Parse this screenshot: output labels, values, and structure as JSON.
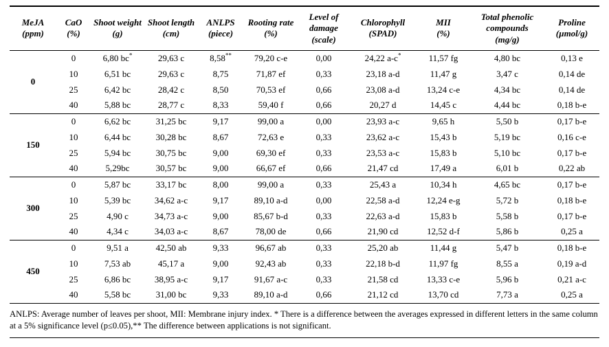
{
  "table": {
    "columns": [
      {
        "name": "MeJA",
        "unit": "(ppm)"
      },
      {
        "name": "CaO",
        "unit": "(%)"
      },
      {
        "name": "Shoot weight",
        "unit": "(g)"
      },
      {
        "name": "Shoot length",
        "unit": "(cm)"
      },
      {
        "name": "ANLPS",
        "unit": "(piece)"
      },
      {
        "name": "Rooting rate",
        "unit": "(%)"
      },
      {
        "name": "Level of damage",
        "unit": "(scale)"
      },
      {
        "name": "Chlorophyll",
        "unit": "(SPAD)"
      },
      {
        "name": "MII",
        "unit": "(%)"
      },
      {
        "name": "Total phenolic compounds",
        "unit": "(mg/g)"
      },
      {
        "name": "Proline",
        "unit": "(µmol/g)"
      }
    ],
    "groups": [
      {
        "meja": "0",
        "rows": [
          {
            "cao": "0",
            "cells": [
              "6,80 bc^*",
              "29,63 c",
              "8,58^**",
              "79,20 c-e",
              "0,00",
              "24,22 a-c^*",
              "11,57 fg",
              "4,80 bc",
              "0,13 e"
            ]
          },
          {
            "cao": "10",
            "cells": [
              "6,51 bc",
              "29,63 c",
              "8,75",
              "71,87 ef",
              "0,33",
              "23,18 a-d",
              "11,47 g",
              "3,47 c",
              "0,14 de"
            ]
          },
          {
            "cao": "25",
            "cells": [
              "6,42 bc",
              "28,42 c",
              "8,50",
              "70,53 ef",
              "0,66",
              "23,08 a-d",
              "13,24 c-e",
              "4,34 bc",
              "0,14 de"
            ]
          },
          {
            "cao": "40",
            "cells": [
              "5,88 bc",
              "28,77 c",
              "8,33",
              "59,40 f",
              "0,66",
              "20,27 d",
              "14,45 c",
              "4,44 bc",
              "0,18 b-e"
            ]
          }
        ]
      },
      {
        "meja": "150",
        "rows": [
          {
            "cao": "0",
            "cells": [
              "6,62 bc",
              "31,25 bc",
              "9,17",
              "99,00 a",
              "0,00",
              "23,93 a-c",
              "9,65 h",
              "5,50 b",
              "0,17 b-e"
            ]
          },
          {
            "cao": "10",
            "cells": [
              "6,44 bc",
              "30,28 bc",
              "8,67",
              "72,63 e",
              "0,33",
              "23,62 a-c",
              "15,43 b",
              "5,19 bc",
              "0,16 c-e"
            ]
          },
          {
            "cao": "25",
            "cells": [
              "5,94 bc",
              "30,75 bc",
              "9,00",
              "69,30 ef",
              "0,33",
              "23,53 a-c",
              "15,83 b",
              "5,10 bc",
              "0,17 b-e"
            ]
          },
          {
            "cao": "40",
            "cells": [
              "5,29bc",
              "30,57 bc",
              "9,00",
              "66,67 ef",
              "0,66",
              "21,47 cd",
              "17,49 a",
              "6,01 b",
              "0,22 ab"
            ]
          }
        ]
      },
      {
        "meja": "300",
        "rows": [
          {
            "cao": "0",
            "cells": [
              "5,87 bc",
              "33,17 bc",
              "8,00",
              "99,00 a",
              "0,33",
              "25,43 a",
              "10,34 h",
              "4,65 bc",
              "0,17 b-e"
            ]
          },
          {
            "cao": "10",
            "cells": [
              "5,39 bc",
              "34,62 a-c",
              "9,17",
              "89,10 a-d",
              "0,00",
              "22,58 a-d",
              "12,24 e-g",
              "5,72 b",
              "0,18 b-e"
            ]
          },
          {
            "cao": "25",
            "cells": [
              "4,90 c",
              "34,73 a-c",
              "9,00",
              "85,67 b-d",
              "0,33",
              "22,63 a-d",
              "15,83 b",
              "5,58 b",
              "0,17 b-e"
            ]
          },
          {
            "cao": "40",
            "cells": [
              "4,34 c",
              "34,03 a-c",
              "8,67",
              "78,00 de",
              "0,66",
              "21,90 cd",
              "12,52 d-f",
              "5,86 b",
              "0,25 a"
            ]
          }
        ]
      },
      {
        "meja": "450",
        "rows": [
          {
            "cao": "0",
            "cells": [
              "9,51 a",
              "42,50 ab",
              "9,33",
              "96,67 ab",
              "0,33",
              "25,20 ab",
              "11,44 g",
              "5,47 b",
              "0,18 b-e"
            ]
          },
          {
            "cao": "10",
            "cells": [
              "7,53 ab",
              "45,17 a",
              "9,00",
              "92,43 ab",
              "0,33",
              "22,18 b-d",
              "11,97 fg",
              "8,55 a",
              "0,19 a-d"
            ]
          },
          {
            "cao": "25",
            "cells": [
              "6,86 bc",
              "38,95 a-c",
              "9,17",
              "91,67 a-c",
              "0,33",
              "21,58 cd",
              "13,33 c-e",
              "5,96 b",
              "0,21 a-c"
            ]
          },
          {
            "cao": "40",
            "cells": [
              "5,58 bc",
              "31,00 bc",
              "9,33",
              "89,10 a-d",
              "0,66",
              "21,12 cd",
              "13,70 cd",
              "7,73 a",
              "0,25 a"
            ]
          }
        ]
      }
    ],
    "footnote": "ANLPS: Average number of leaves per shoot, MII: Membrane injury index. * There is a difference between the averages expressed in different letters in the same column at a 5% significance level (p≤0.05),** The difference between applications is not significant."
  }
}
